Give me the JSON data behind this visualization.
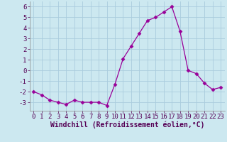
{
  "x": [
    0,
    1,
    2,
    3,
    4,
    5,
    6,
    7,
    8,
    9,
    10,
    11,
    12,
    13,
    14,
    15,
    16,
    17,
    18,
    19,
    20,
    21,
    22,
    23
  ],
  "y": [
    -2.0,
    -2.3,
    -2.8,
    -3.0,
    -3.2,
    -2.8,
    -3.0,
    -3.0,
    -3.0,
    -3.3,
    -1.3,
    1.1,
    2.3,
    3.5,
    4.7,
    5.0,
    5.5,
    6.0,
    3.7,
    0.0,
    -0.3,
    -1.2,
    -1.8,
    -1.6
  ],
  "line_color": "#990099",
  "marker": "D",
  "marker_size": 2.5,
  "background_color": "#cce8f0",
  "grid_color": "#aaccdd",
  "xlabel": "Windchill (Refroidissement éolien,°C)",
  "xlabel_fontsize": 7,
  "tick_fontsize": 6.5,
  "xlim": [
    -0.5,
    23.5
  ],
  "ylim": [
    -3.8,
    6.5
  ],
  "yticks": [
    -3,
    -2,
    -1,
    0,
    1,
    2,
    3,
    4,
    5,
    6
  ],
  "xticks": [
    0,
    1,
    2,
    3,
    4,
    5,
    6,
    7,
    8,
    9,
    10,
    11,
    12,
    13,
    14,
    15,
    16,
    17,
    18,
    19,
    20,
    21,
    22,
    23
  ]
}
